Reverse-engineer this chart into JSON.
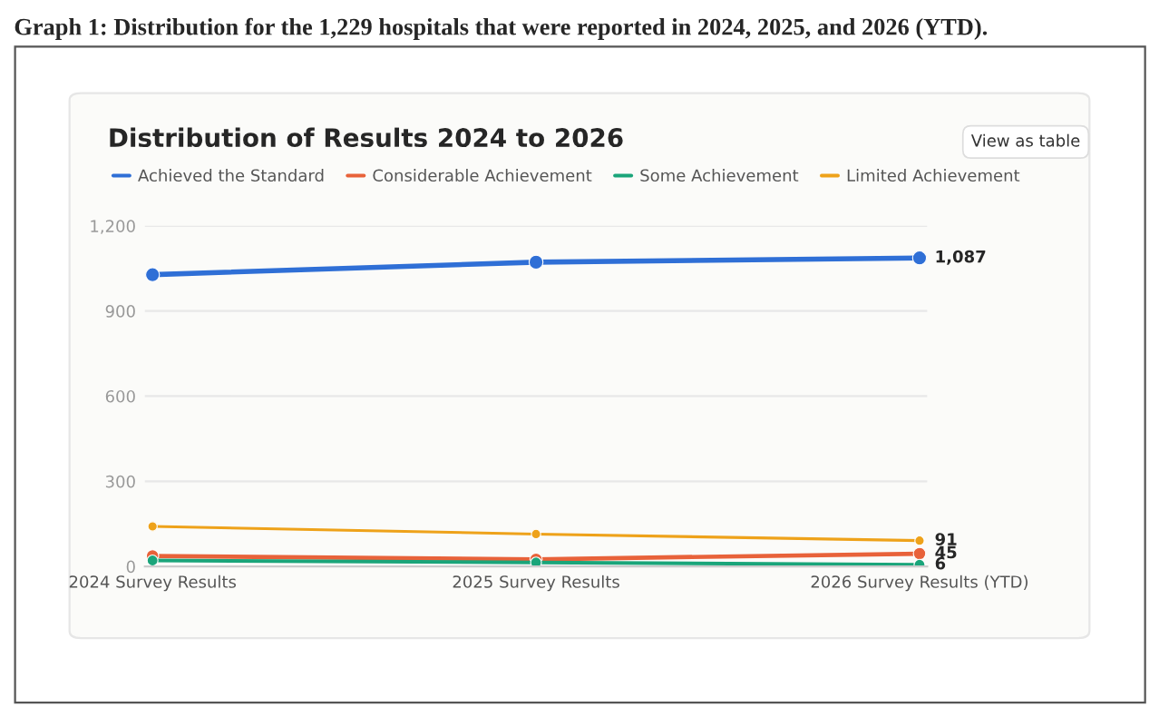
{
  "chart_data": {
    "type": "line",
    "title": "Graph 1: Distribution for the 1,229 hospitals that were reported in 2024, 2025, and 2026 (YTD).",
    "subtitle": "Distribution of Results 2024 to 2026",
    "annotations": [
      "View as table"
    ],
    "categories": [
      "2024 Survey Results",
      "2025 Survey Results",
      "2026 Survey Results (YTD)"
    ],
    "series": [
      {
        "name": "Achieved the Standard",
        "color": "#2f6fd6",
        "values": [
          1028,
          1072,
          1087
        ],
        "value_labels": [
          null,
          null,
          "1,087"
        ]
      },
      {
        "name": "Considerable Achievement",
        "color": "#e8623a",
        "values": [
          37,
          25,
          45
        ],
        "value_labels": [
          null,
          null,
          "45"
        ]
      },
      {
        "name": "Some Achievement",
        "color": "#1aa57a",
        "values": [
          21,
          14,
          6
        ],
        "value_labels": [
          null,
          null,
          "6"
        ]
      },
      {
        "name": "Limited Achievement",
        "color": "#eea21a",
        "values": [
          141,
          114,
          91
        ],
        "value_labels": [
          null,
          null,
          "91"
        ]
      }
    ],
    "ylim": [
      0,
      1200
    ],
    "yticks": [
      0,
      300,
      600,
      900,
      {
        "value": 1200,
        "label": "1,200"
      }
    ],
    "grid": "y",
    "legend": "top left",
    "marker": "circle",
    "line_style": "solid"
  }
}
